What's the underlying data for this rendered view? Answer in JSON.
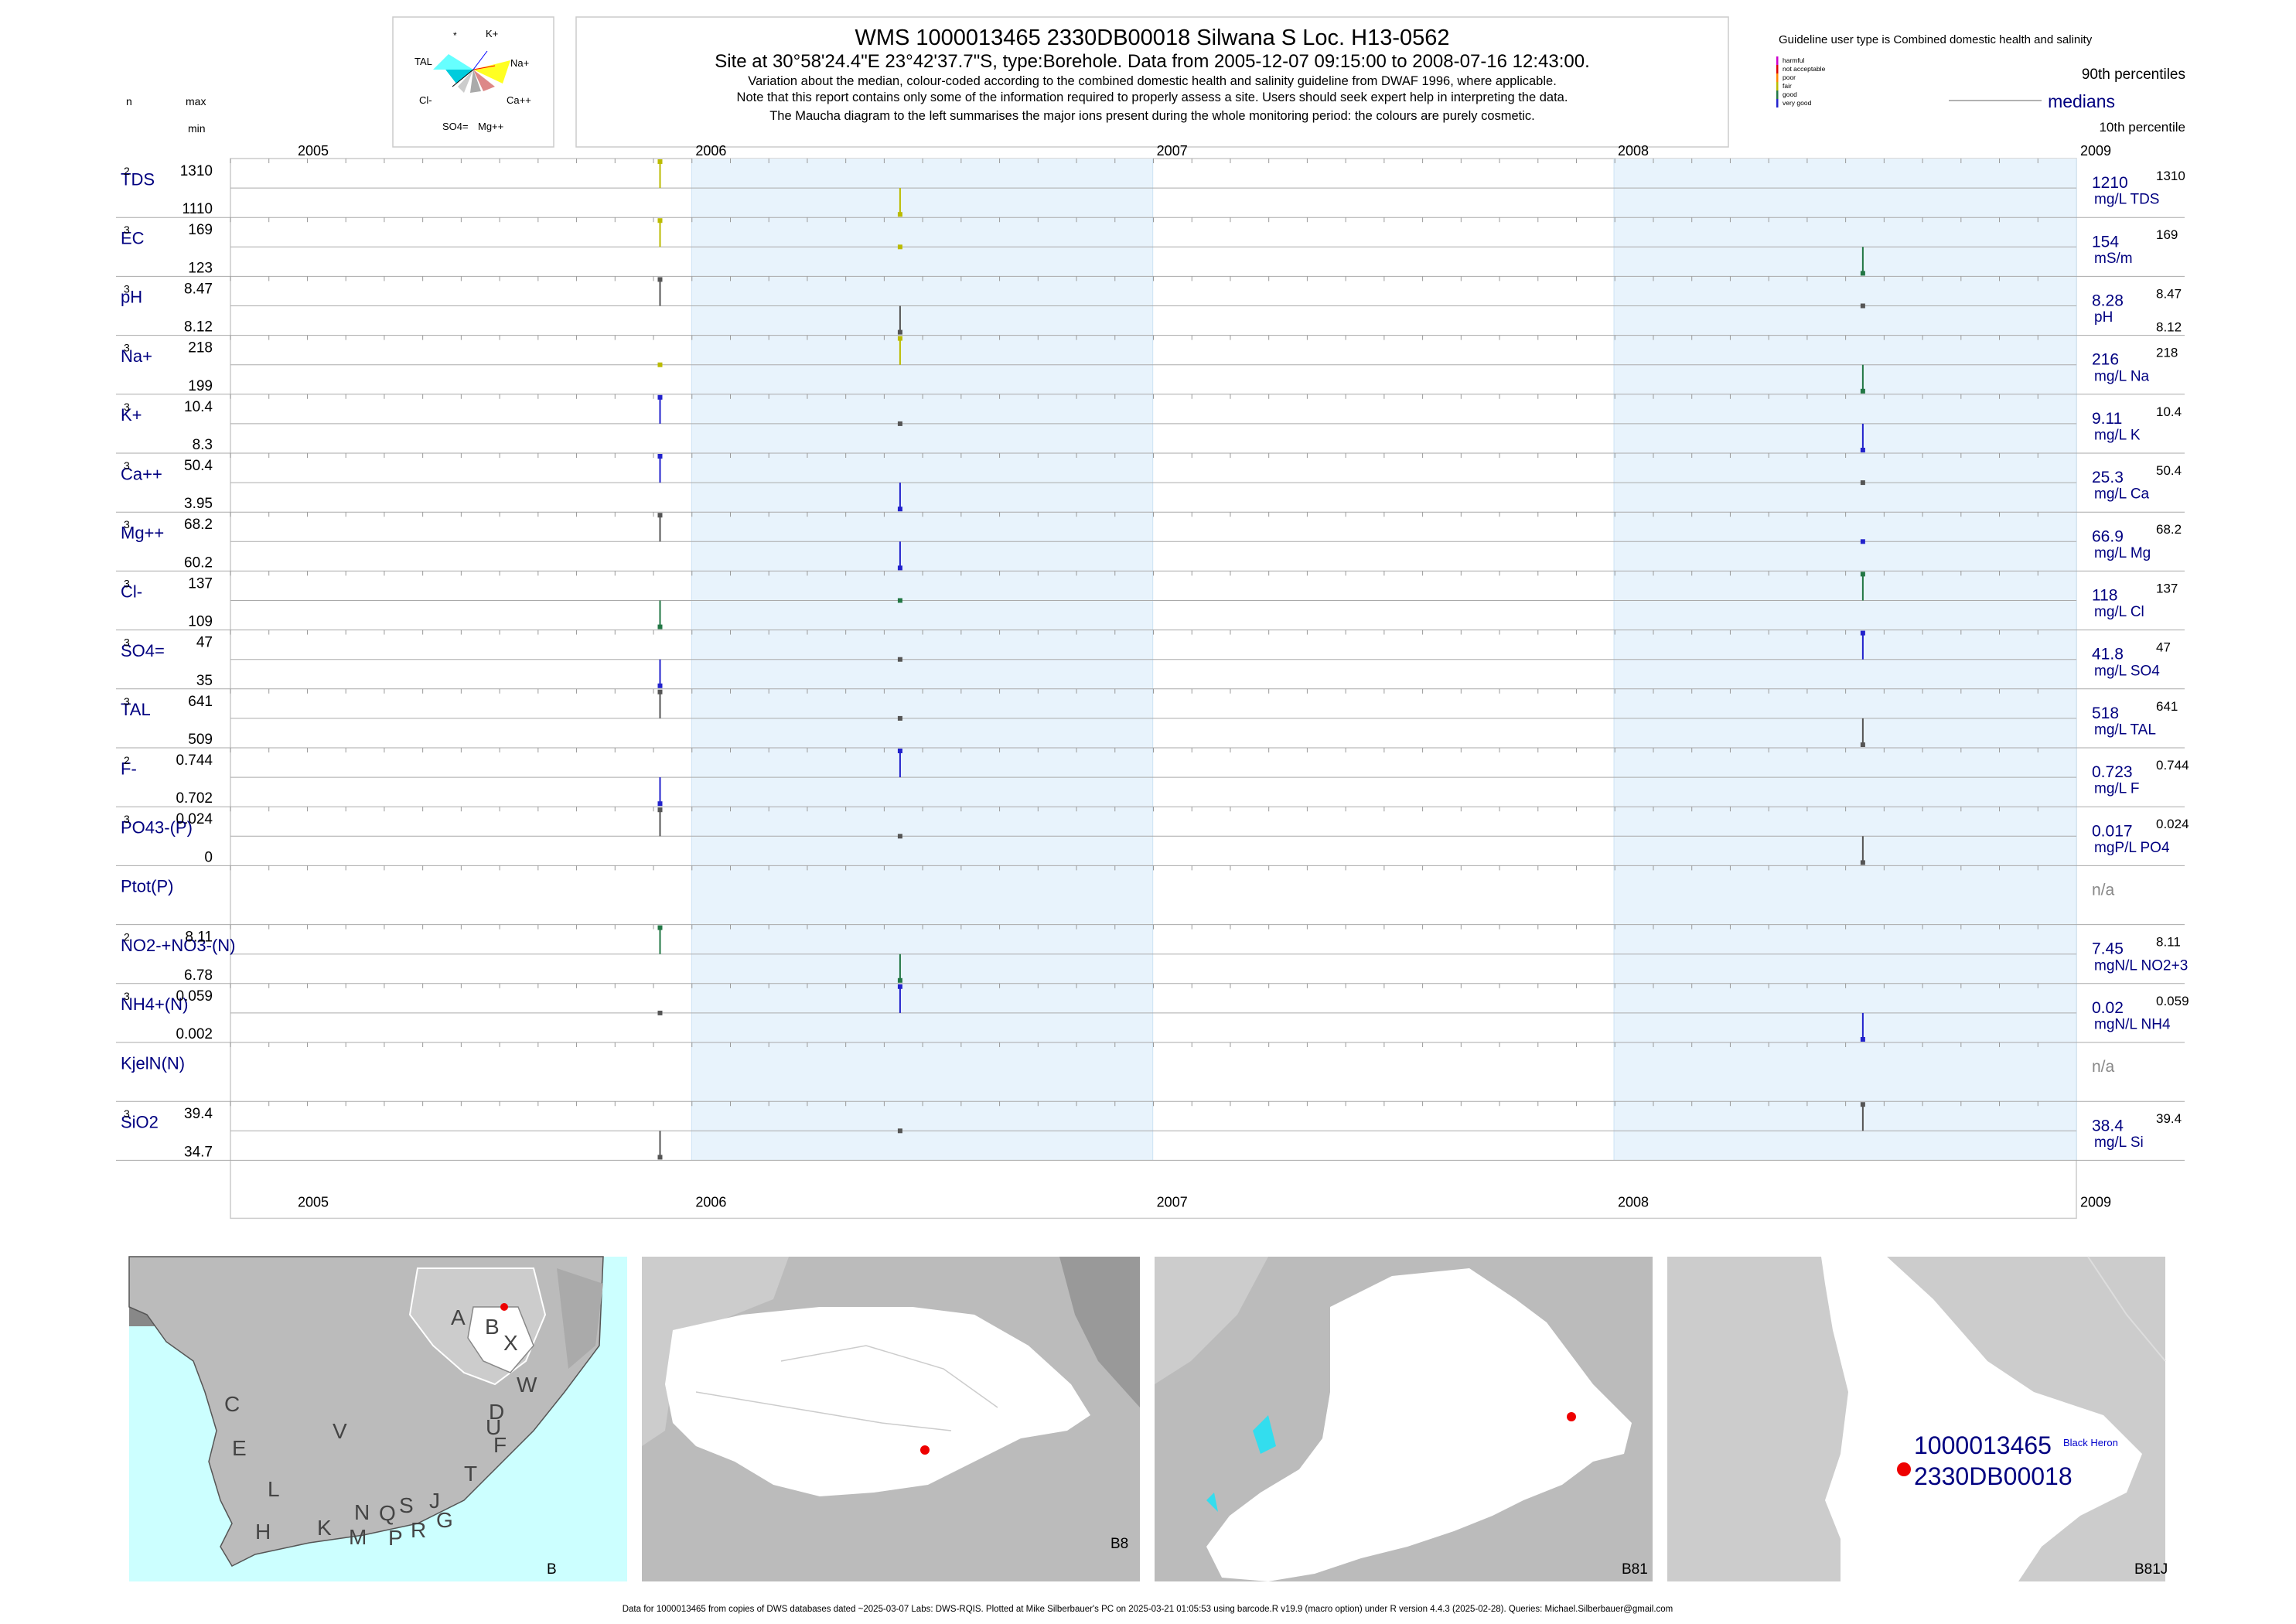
{
  "header": {
    "title": "WMS 1000013465 2330DB00018 Silwana S Loc. H13-0562",
    "subtitle": "Site at 30°58'24.4\"E 23°42'37.7\"S, type:Borehole.  Data from 2005-12-07 09:15:00 to 2008-07-16 12:43:00.",
    "note1": "Variation about the median,  colour-coded according to the combined domestic health and salinity guideline from DWAF 1996, where applicable.",
    "note2": "Note that this report contains only some of the information required to properly assess a site. Users should seek expert help in interpreting the data.",
    "note3": "The Maucha diagram to the left summarises the major ions present during the whole monitoring period: the colours are purely cosmetic."
  },
  "maucha": {
    "labels": [
      "*",
      "K+",
      "TAL",
      "Na+",
      "Cl-",
      "Ca++",
      "SO4=",
      "Mg++"
    ]
  },
  "guideline": {
    "title": "Guideline user type is Combined domestic health and salinity",
    "classes": [
      {
        "name": "harmful",
        "color": "#cc00cc"
      },
      {
        "name": "not acceptable",
        "color": "#dd0000"
      },
      {
        "name": "poor",
        "color": "#ff8800"
      },
      {
        "name": "fair",
        "color": "#bbbb00"
      },
      {
        "name": "good",
        "color": "#227744"
      },
      {
        "name": "very good",
        "color": "#2222cc"
      }
    ],
    "p90": "90th percentiles",
    "medians": "medians",
    "p10": "10th percentile"
  },
  "left_headers": {
    "n": "n",
    "max": "max",
    "min": "min"
  },
  "chart_data": {
    "type": "line",
    "x_range": [
      "2005-01-01",
      "2009-01-01"
    ],
    "shaded_years": [
      2006,
      2008
    ],
    "year_labels": [
      "2005",
      "2006",
      "2007",
      "2008",
      "2009"
    ],
    "sample_dates": [
      "2005-12-07",
      "2006-06-15",
      "2008-07-16"
    ],
    "params": [
      {
        "label": "TDS",
        "n": "2",
        "max": "1310",
        "min": "1110",
        "median": "1210",
        "unit": "mg/L TDS",
        "rmax": "1310",
        "values": [
          1310,
          1110,
          null
        ],
        "colors": [
          "#bbbb00",
          "#bbbb00",
          null
        ]
      },
      {
        "label": "EC",
        "n": "3",
        "max": "169",
        "min": "123",
        "median": "154",
        "unit": "mS/m",
        "rmax": "169",
        "values": [
          169,
          154,
          123
        ],
        "colors": [
          "#bbbb00",
          "#bbbb00",
          "#227744"
        ]
      },
      {
        "label": "pH",
        "n": "3",
        "max": "8.47",
        "min": "8.12",
        "median": "8.28",
        "unit": "pH",
        "rmax": "8.47",
        "rmin": "8.12",
        "values": [
          8.47,
          8.12,
          8.28
        ],
        "colors": [
          "#555555",
          "#555555",
          "#555555"
        ]
      },
      {
        "label": "Na+",
        "n": "3",
        "max": "218",
        "min": "199",
        "median": "216",
        "unit": "mg/L Na",
        "rmax": "218",
        "values": [
          216,
          218,
          199
        ],
        "colors": [
          "#bbbb00",
          "#bbbb00",
          "#227744"
        ]
      },
      {
        "label": "K+",
        "n": "3",
        "max": "10.4",
        "min": "8.3",
        "median": "9.11",
        "unit": "mg/L K",
        "rmax": "10.4",
        "values": [
          10.4,
          9.11,
          8.3
        ],
        "colors": [
          "#2222cc",
          "#555555",
          "#2222cc"
        ]
      },
      {
        "label": "Ca++",
        "n": "3",
        "max": "50.4",
        "min": "3.95",
        "median": "25.3",
        "unit": "mg/L Ca",
        "rmax": "50.4",
        "values": [
          50.4,
          3.95,
          25.3
        ],
        "colors": [
          "#2222cc",
          "#2222cc",
          "#555555"
        ]
      },
      {
        "label": "Mg++",
        "n": "3",
        "max": "68.2",
        "min": "60.2",
        "median": "66.9",
        "unit": "mg/L Mg",
        "rmax": "68.2",
        "values": [
          68.2,
          60.2,
          66.9
        ],
        "colors": [
          "#555555",
          "#2222cc",
          "#2222cc"
        ]
      },
      {
        "label": "Cl-",
        "n": "3",
        "max": "137",
        "min": "109",
        "median": "118",
        "unit": "mg/L Cl",
        "rmax": "137",
        "values": [
          109,
          118,
          137
        ],
        "colors": [
          "#227744",
          "#227744",
          "#227744"
        ]
      },
      {
        "label": "SO4=",
        "n": "3",
        "max": "47",
        "min": "35",
        "median": "41.8",
        "unit": "mg/L SO4",
        "rmax": "47",
        "values": [
          35,
          41.8,
          47
        ],
        "colors": [
          "#2222cc",
          "#555555",
          "#2222cc"
        ]
      },
      {
        "label": "TAL",
        "n": "3",
        "max": "641",
        "min": "509",
        "median": "518",
        "unit": "mg/L TAL",
        "rmax": "641",
        "values": [
          641,
          518,
          509
        ],
        "colors": [
          "#555555",
          "#555555",
          "#555555"
        ]
      },
      {
        "label": "F-",
        "n": "2",
        "max": "0.744",
        "min": "0.702",
        "median": "0.723",
        "unit": "mg/L F",
        "rmax": "0.744",
        "values": [
          0.702,
          0.744,
          null
        ],
        "colors": [
          "#2222cc",
          "#2222cc",
          null
        ]
      },
      {
        "label": "PO43-(P)",
        "n": "3",
        "max": "0.024",
        "min": "0",
        "median": "0.017",
        "unit": "mgP/L PO4",
        "rmax": "0.024",
        "values": [
          0.024,
          0.017,
          0
        ],
        "colors": [
          "#555555",
          "#555555",
          "#555555"
        ]
      },
      {
        "label": "Ptot(P)",
        "n": "",
        "max": "",
        "min": "",
        "median": "n/a",
        "unit": "",
        "rmax": "",
        "values": [
          null,
          null,
          null
        ],
        "colors": [
          null,
          null,
          null
        ]
      },
      {
        "label": "NO2-+NO3-(N)",
        "n": "2",
        "max": "8.11",
        "min": "6.78",
        "median": "7.45",
        "unit": "mgN/L NO2+3",
        "rmax": "8.11",
        "values": [
          8.11,
          6.78,
          null
        ],
        "colors": [
          "#227744",
          "#227744",
          null
        ]
      },
      {
        "label": "NH4+(N)",
        "n": "3",
        "max": "0.059",
        "min": "0.002",
        "median": "0.02",
        "unit": "mgN/L NH4",
        "rmax": "0.059",
        "values": [
          0.02,
          0.059,
          0.002
        ],
        "colors": [
          "#555555",
          "#2222cc",
          "#2222cc"
        ]
      },
      {
        "label": "KjelN(N)",
        "n": "",
        "max": "",
        "min": "",
        "median": "n/a",
        "unit": "",
        "rmax": "",
        "values": [
          null,
          null,
          null
        ],
        "colors": [
          null,
          null,
          null
        ]
      },
      {
        "label": "SiO2",
        "n": "3",
        "max": "39.4",
        "min": "34.7",
        "median": "38.4",
        "unit": "mg/L Si",
        "rmax": "39.4",
        "values": [
          34.7,
          38.4,
          39.4
        ],
        "colors": [
          "#555555",
          "#555555",
          "#555555"
        ]
      }
    ]
  },
  "maps": {
    "regions": [
      "A",
      "B",
      "X",
      "C",
      "W",
      "D",
      "V",
      "U",
      "F",
      "E",
      "T",
      "L",
      "N",
      "Q",
      "S",
      "J",
      "K",
      "M",
      "P",
      "R",
      "G",
      "H"
    ],
    "panel_labels": [
      "B",
      "B8",
      "B81",
      "B81J"
    ],
    "site_label_1": "1000013465",
    "site_label_2": "2330DB00018",
    "place": "Black Heron"
  },
  "footer": "Data for 1000013465 from copies of DWS databases dated ~2025-03-07 Labs: DWS-RQIS. Plotted at Mike Silberbauer's PC on 2025-03-21 01:05:53 using barcode.R v19.9 (macro option) under R version 4.4.3 (2025-02-28). Queries: Michael.Silberbauer@gmail.com"
}
